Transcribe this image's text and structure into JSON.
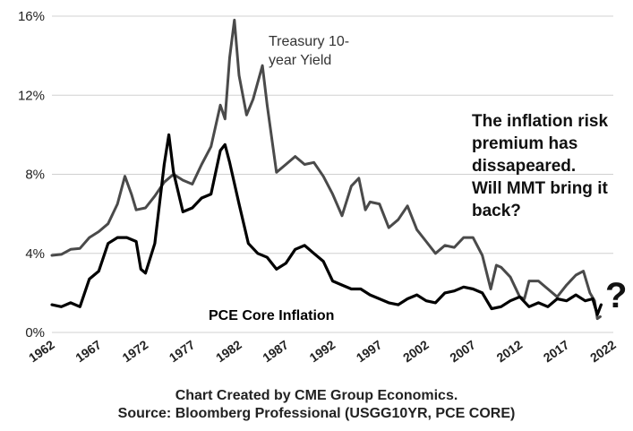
{
  "chart_data": {
    "type": "line",
    "title": "",
    "xlabel": "",
    "ylabel": "",
    "xlim": [
      1962,
      2022
    ],
    "ylim": [
      0,
      16
    ],
    "grid": true,
    "y_ticks": [
      {
        "value": 0,
        "label": "0%"
      },
      {
        "value": 4,
        "label": "4%"
      },
      {
        "value": 8,
        "label": "8%"
      },
      {
        "value": 12,
        "label": "12%"
      },
      {
        "value": 16,
        "label": "16%"
      }
    ],
    "x_ticks": [
      {
        "value": 1962,
        "label": "1962"
      },
      {
        "value": 1967,
        "label": "1967"
      },
      {
        "value": 1972,
        "label": "1972"
      },
      {
        "value": 1977,
        "label": "1977"
      },
      {
        "value": 1982,
        "label": "1982"
      },
      {
        "value": 1987,
        "label": "1987"
      },
      {
        "value": 1992,
        "label": "1992"
      },
      {
        "value": 1997,
        "label": "1997"
      },
      {
        "value": 2002,
        "label": "2002"
      },
      {
        "value": 2007,
        "label": "2007"
      },
      {
        "value": 2012,
        "label": "2012"
      },
      {
        "value": 2017,
        "label": "2017"
      },
      {
        "value": 2022,
        "label": "2022"
      }
    ],
    "series": [
      {
        "name": "Treasury 10-year Yield",
        "color": "#4a4a4a",
        "label_lines": [
          "Treasury 10-",
          "year Yield"
        ],
        "x": [
          1962,
          1963,
          1964,
          1965,
          1966,
          1967,
          1968,
          1969,
          1969.8,
          1970.5,
          1971,
          1972,
          1973,
          1974,
          1975,
          1976,
          1977,
          1978,
          1979,
          1980,
          1980.5,
          1981,
          1981.5,
          1982,
          1982.8,
          1983.5,
          1984.5,
          1985,
          1986,
          1987,
          1988,
          1989,
          1990,
          1991,
          1992,
          1993,
          1994,
          1994.8,
          1995.5,
          1996,
          1997,
          1998,
          1999,
          2000,
          2001,
          2002,
          2003,
          2004,
          2005,
          2006,
          2007,
          2008,
          2008.9,
          2009.5,
          2010,
          2011,
          2012,
          2012.5,
          2013,
          2014,
          2015,
          2016,
          2017,
          2018,
          2018.8,
          2019.5,
          2020,
          2020.3,
          2020.6
        ],
        "values": [
          3.9,
          3.95,
          4.2,
          4.25,
          4.8,
          5.1,
          5.5,
          6.5,
          7.9,
          7.0,
          6.2,
          6.3,
          6.9,
          7.6,
          8.0,
          7.7,
          7.5,
          8.5,
          9.4,
          11.5,
          10.8,
          13.9,
          15.8,
          13.0,
          11.0,
          11.8,
          13.5,
          11.5,
          8.1,
          8.5,
          8.9,
          8.5,
          8.6,
          7.9,
          7.0,
          5.9,
          7.4,
          7.8,
          6.2,
          6.6,
          6.5,
          5.3,
          5.7,
          6.4,
          5.2,
          4.6,
          4.0,
          4.4,
          4.3,
          4.8,
          4.8,
          3.9,
          2.2,
          3.4,
          3.3,
          2.8,
          1.8,
          1.7,
          2.6,
          2.6,
          2.2,
          1.8,
          2.4,
          2.9,
          3.1,
          2.0,
          1.6,
          0.7,
          0.8
        ]
      },
      {
        "name": "PCE Core Inflation",
        "color": "#000000",
        "label_lines": [
          "PCE Core Inflation"
        ],
        "x": [
          1962,
          1963,
          1964,
          1965,
          1966,
          1967,
          1968,
          1969,
          1970,
          1971,
          1971.5,
          1972,
          1973,
          1974,
          1974.5,
          1975,
          1976,
          1977,
          1978,
          1979,
          1980,
          1980.5,
          1981,
          1982,
          1983,
          1984,
          1985,
          1986,
          1987,
          1988,
          1989,
          1990,
          1991,
          1992,
          1993,
          1994,
          1995,
          1996,
          1997,
          1998,
          1999,
          2000,
          2001,
          2002,
          2003,
          2004,
          2005,
          2006,
          2007,
          2008,
          2009,
          2010,
          2011,
          2012,
          2013,
          2014,
          2015,
          2016,
          2017,
          2018,
          2019,
          2019.8,
          2020.3,
          2020.7
        ],
        "values": [
          1.4,
          1.3,
          1.5,
          1.3,
          2.7,
          3.1,
          4.5,
          4.8,
          4.8,
          4.6,
          3.2,
          3.0,
          4.5,
          8.5,
          10.0,
          8.1,
          6.1,
          6.3,
          6.8,
          7.0,
          9.2,
          9.5,
          8.6,
          6.5,
          4.5,
          4.0,
          3.8,
          3.2,
          3.5,
          4.2,
          4.4,
          4.0,
          3.6,
          2.6,
          2.4,
          2.2,
          2.2,
          1.9,
          1.7,
          1.5,
          1.4,
          1.7,
          1.9,
          1.6,
          1.5,
          2.0,
          2.1,
          2.3,
          2.2,
          2.0,
          1.2,
          1.3,
          1.6,
          1.8,
          1.3,
          1.5,
          1.3,
          1.7,
          1.6,
          1.9,
          1.6,
          1.7,
          0.9,
          1.4
        ]
      }
    ],
    "annotations": [
      {
        "text": "The inflation risk"
      },
      {
        "text": "premium has"
      },
      {
        "text": "dissapeared."
      },
      {
        "text": "Will MMT bring it"
      },
      {
        "text": "back?"
      },
      {
        "text": "?"
      }
    ]
  },
  "source": {
    "line1": "Chart Created by CME Group Economics.",
    "line2": "Source: Bloomberg Professional (USGG10YR, PCE CORE)"
  }
}
